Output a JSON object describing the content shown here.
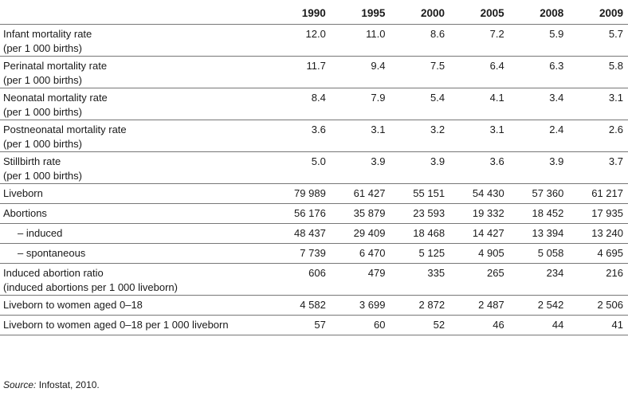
{
  "table": {
    "years": [
      "1990",
      "1995",
      "2000",
      "2005",
      "2008",
      "2009"
    ],
    "rows": [
      {
        "label": "Infant mortality rate",
        "sub": "(per 1 000 births)",
        "values": [
          "12.0",
          "11.0",
          "8.6",
          "7.2",
          "5.9",
          "5.7"
        ]
      },
      {
        "label": "Perinatal mortality rate",
        "sub": "(per 1 000 births)",
        "values": [
          "11.7",
          "9.4",
          "7.5",
          "6.4",
          "6.3",
          "5.8"
        ]
      },
      {
        "label": "Neonatal mortality rate",
        "sub": "(per 1 000 births)",
        "values": [
          "8.4",
          "7.9",
          "5.4",
          "4.1",
          "3.4",
          "3.1"
        ]
      },
      {
        "label": "Postneonatal mortality rate",
        "sub": "(per 1 000 births)",
        "values": [
          "3.6",
          "3.1",
          "3.2",
          "3.1",
          "2.4",
          "2.6"
        ]
      },
      {
        "label": "Stillbirth rate",
        "sub": "(per 1 000 births)",
        "values": [
          "5.0",
          "3.9",
          "3.9",
          "3.6",
          "3.9",
          "3.7"
        ]
      },
      {
        "label": "Liveborn",
        "sub": "",
        "values": [
          "79 989",
          "61 427",
          "55 151",
          "54 430",
          "57 360",
          "61 217"
        ]
      },
      {
        "label": "Abortions",
        "sub": "",
        "values": [
          "56 176",
          "35 879",
          "23 593",
          "19 332",
          "18 452",
          "17 935"
        ]
      },
      {
        "label": "– induced",
        "sub": "",
        "indent": true,
        "values": [
          "48 437",
          "29 409",
          "18 468",
          "14 427",
          "13 394",
          "13 240"
        ]
      },
      {
        "label": "– spontaneous",
        "sub": "",
        "indent": true,
        "values": [
          "7 739",
          "6 470",
          "5 125",
          "4 905",
          "5 058",
          "4 695"
        ]
      },
      {
        "label": "Induced abortion ratio",
        "sub": "(induced abortions per 1 000 liveborn)",
        "values": [
          "606",
          "479",
          "335",
          "265",
          "234",
          "216"
        ]
      },
      {
        "label": "Liveborn to women aged 0–18",
        "sub": "",
        "values": [
          "4 582",
          "3 699",
          "2 872",
          "2 487",
          "2 542",
          "2 506"
        ]
      },
      {
        "label": "Liveborn to women aged 0–18 per 1 000 liveborn",
        "sub": "",
        "values": [
          "57",
          "60",
          "52",
          "46",
          "44",
          "41"
        ]
      }
    ]
  },
  "source": {
    "prefix": "Source:",
    "text": " Infostat, 2010."
  }
}
